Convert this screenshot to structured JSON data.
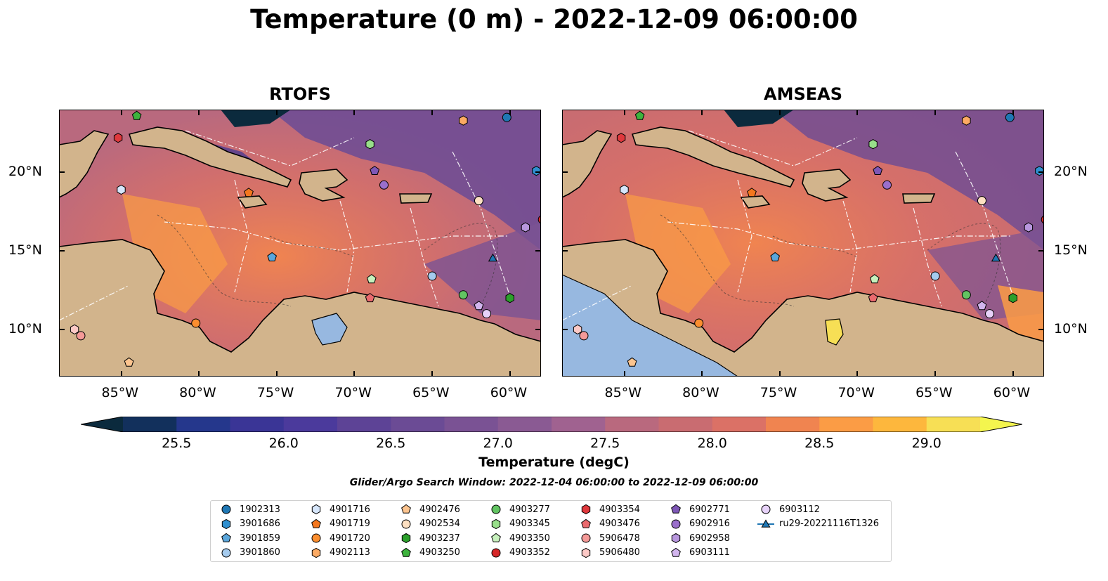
{
  "title": "Temperature (0 m) - 2022-12-09 06:00:00",
  "panels": [
    {
      "title": "RTOFS"
    },
    {
      "title": "AMSEAS"
    }
  ],
  "map": {
    "lon_range": [
      -89,
      -58
    ],
    "lat_range": [
      7,
      24
    ],
    "lon_ticks": [
      {
        "lon": -85,
        "label": "85°W"
      },
      {
        "lon": -80,
        "label": "80°W"
      },
      {
        "lon": -75,
        "label": "75°W"
      },
      {
        "lon": -70,
        "label": "70°W"
      },
      {
        "lon": -65,
        "label": "65°W"
      },
      {
        "lon": -60,
        "label": "60°W"
      }
    ],
    "lat_ticks": [
      {
        "lat": 20,
        "label": "20°N"
      },
      {
        "lat": 15,
        "label": "15°N"
      },
      {
        "lat": 10,
        "label": "10°N"
      }
    ],
    "colors": {
      "land": "#d2b48c",
      "ocean_base": "#d06c63",
      "lake": "#97b8e0",
      "eez_lines": "#ffffff",
      "coast": "#000000"
    }
  },
  "colorbar": {
    "label": "Temperature (degC)",
    "min": 25.25,
    "max": 29.25,
    "step": 0.25,
    "ticks": [
      "25.5",
      "26.0",
      "26.5",
      "27.0",
      "27.5",
      "28.0",
      "28.5",
      "29.0"
    ],
    "colors": [
      "#0b2a3d",
      "#12305c",
      "#25378c",
      "#3a3596",
      "#4b3a9c",
      "#5d4396",
      "#6b4b95",
      "#7a5294",
      "#8a5a93",
      "#a06290",
      "#b9697e",
      "#c96c71",
      "#db7166",
      "#f08450",
      "#fb9c45",
      "#fdb73d",
      "#f7df55",
      "#f4f54e"
    ]
  },
  "search_window": "Glider/Argo Search Window: 2022-12-04 06:00:00 to 2022-12-09 06:00:00",
  "legend": [
    {
      "label": "1902313",
      "marker": "circle",
      "color": "#1f77b4"
    },
    {
      "label": "3901686",
      "marker": "hexagon",
      "color": "#2f8fcf"
    },
    {
      "label": "3901859",
      "marker": "pentagon",
      "color": "#5aa6db"
    },
    {
      "label": "3901860",
      "marker": "circle",
      "color": "#a5cbee"
    },
    {
      "label": "4901716",
      "marker": "hexagon",
      "color": "#d6e6fb"
    },
    {
      "label": "4901719",
      "marker": "pentagon",
      "color": "#f4771e"
    },
    {
      "label": "4901720",
      "marker": "circle",
      "color": "#fb8e2f"
    },
    {
      "label": "4902113",
      "marker": "hexagon",
      "color": "#fcaa63"
    },
    {
      "label": "4902476",
      "marker": "pentagon",
      "color": "#fcc48f"
    },
    {
      "label": "4902534",
      "marker": "circle",
      "color": "#fde0c2"
    },
    {
      "label": "4903237",
      "marker": "hexagon",
      "color": "#2ca02c"
    },
    {
      "label": "4903250",
      "marker": "pentagon",
      "color": "#3db33d"
    },
    {
      "label": "4903277",
      "marker": "circle",
      "color": "#62c462"
    },
    {
      "label": "4903345",
      "marker": "hexagon",
      "color": "#98df8a"
    },
    {
      "label": "4903350",
      "marker": "pentagon",
      "color": "#c7f1bd"
    },
    {
      "label": "4903352",
      "marker": "circle",
      "color": "#d62728"
    },
    {
      "label": "4903354",
      "marker": "hexagon",
      "color": "#e0393d"
    },
    {
      "label": "4903476",
      "marker": "pentagon",
      "color": "#ea6a6e"
    },
    {
      "label": "5906478",
      "marker": "circle",
      "color": "#f59a98"
    },
    {
      "label": "5906480",
      "marker": "hexagon",
      "color": "#fcc9c6"
    },
    {
      "label": "6902771",
      "marker": "pentagon",
      "color": "#7e57b6"
    },
    {
      "label": "6902916",
      "marker": "circle",
      "color": "#9a6fcb"
    },
    {
      "label": "6902958",
      "marker": "hexagon",
      "color": "#b897de"
    },
    {
      "label": "6903111",
      "marker": "pentagon",
      "color": "#d2b5ee"
    },
    {
      "label": "6903112",
      "marker": "circle",
      "color": "#e7d2f9"
    },
    {
      "label": "ru29-20221116T1326",
      "marker": "triangle-line",
      "color": "#1f77b4"
    }
  ],
  "floats": [
    {
      "id": "1902313",
      "lon": -60.2,
      "lat": 23.5
    },
    {
      "id": "3901686",
      "lon": -58.3,
      "lat": 20.1
    },
    {
      "id": "3901859",
      "lon": -75.3,
      "lat": 14.6
    },
    {
      "id": "3901860",
      "lon": -65.0,
      "lat": 13.4
    },
    {
      "id": "4901716",
      "lon": -85.0,
      "lat": 18.9
    },
    {
      "id": "4901719",
      "lon": -76.8,
      "lat": 18.7
    },
    {
      "id": "4901720",
      "lon": -80.2,
      "lat": 10.4
    },
    {
      "id": "4902113",
      "lon": -63.0,
      "lat": 23.3
    },
    {
      "id": "4902476",
      "lon": -84.5,
      "lat": 7.9
    },
    {
      "id": "4902534",
      "lon": -62.0,
      "lat": 18.2
    },
    {
      "id": "4903237",
      "lon": -60.0,
      "lat": 12.0
    },
    {
      "id": "4903250",
      "lon": -84.0,
      "lat": 23.6
    },
    {
      "id": "4903277",
      "lon": -63.0,
      "lat": 12.2
    },
    {
      "id": "4903345",
      "lon": -69.0,
      "lat": 21.8
    },
    {
      "id": "4903350",
      "lon": -68.9,
      "lat": 13.2
    },
    {
      "id": "4903352",
      "lon": -57.9,
      "lat": 17.0
    },
    {
      "id": "4903354",
      "lon": -85.2,
      "lat": 22.2
    },
    {
      "id": "4903476",
      "lon": -69.0,
      "lat": 12.0
    },
    {
      "id": "5906478",
      "lon": -87.6,
      "lat": 9.6
    },
    {
      "id": "5906480",
      "lon": -88.0,
      "lat": 10.0
    },
    {
      "id": "6902771",
      "lon": -68.7,
      "lat": 20.1
    },
    {
      "id": "6902916",
      "lon": -68.1,
      "lat": 19.2
    },
    {
      "id": "6902958",
      "lon": -59.0,
      "lat": 16.5
    },
    {
      "id": "6903111",
      "lon": -62.0,
      "lat": 11.5
    },
    {
      "id": "6903112",
      "lon": -61.5,
      "lat": 11.0
    },
    {
      "id": "ru29-20221116T1326",
      "lon": -61.1,
      "lat": 14.5
    }
  ]
}
